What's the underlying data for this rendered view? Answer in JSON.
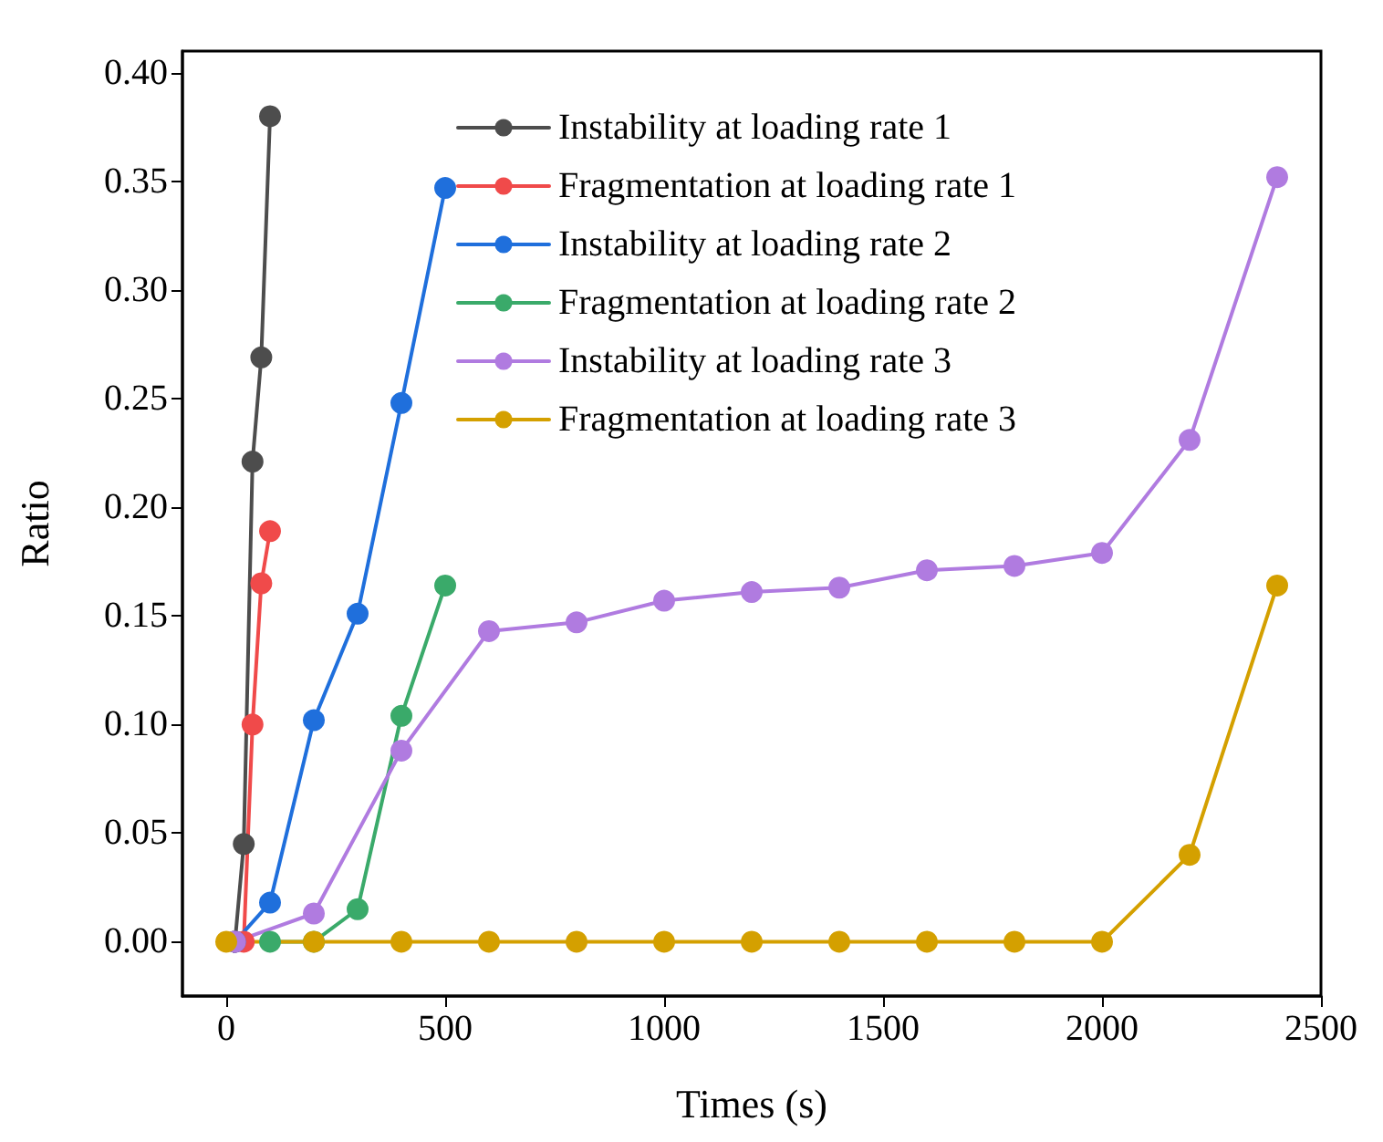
{
  "chart_data": {
    "type": "line",
    "xlabel": "Times (s)",
    "ylabel": "Ratio",
    "xlim": [
      -100,
      2500
    ],
    "xticks": [
      0,
      500,
      1000,
      1500,
      2000,
      2500
    ],
    "ylim": [
      -0.025,
      0.41
    ],
    "yticks": [
      {
        "value": 0,
        "label": "0.00"
      },
      {
        "value": 0.05,
        "label": "0.05"
      },
      {
        "value": 0.1,
        "label": "0.10"
      },
      {
        "value": 0.15,
        "label": "0.15"
      },
      {
        "value": 0.2,
        "label": "0.20"
      },
      {
        "value": 0.25,
        "label": "0.25"
      },
      {
        "value": 0.3,
        "label": "0.30"
      },
      {
        "value": 0.35,
        "label": "0.35"
      },
      {
        "value": 0.4,
        "label": "0.40"
      }
    ],
    "grid": false,
    "legend": "top right",
    "marker": "circle",
    "line_style": "solid",
    "series": [
      {
        "name": "Instability at loading rate 1",
        "color": "#4d4d4d",
        "x": [
          20,
          40,
          60,
          80,
          100
        ],
        "values": [
          0,
          0.045,
          0.221,
          0.269,
          0.38
        ]
      },
      {
        "name": "Fragmentation at loading rate 1",
        "color": "#f04a4a",
        "x": [
          20,
          40,
          60,
          80,
          100
        ],
        "values": [
          0,
          0,
          0.1,
          0.165,
          0.189
        ]
      },
      {
        "name": "Instability at loading rate 2",
        "color": "#1f6fdc",
        "x": [
          20,
          100,
          200,
          300,
          400,
          500
        ],
        "values": [
          0,
          0.018,
          0.102,
          0.151,
          0.248,
          0.347
        ]
      },
      {
        "name": "Fragmentation at loading rate 2",
        "color": "#3aaa6a",
        "x": [
          100,
          200,
          300,
          400,
          500
        ],
        "values": [
          0,
          0,
          0.015,
          0.104,
          0.164
        ]
      },
      {
        "name": "Instability at loading rate 3",
        "color": "#b07be0",
        "x": [
          20,
          200,
          400,
          600,
          800,
          1000,
          1200,
          1400,
          1600,
          1800,
          2000,
          2200,
          2400
        ],
        "values": [
          0,
          0.013,
          0.088,
          0.143,
          0.147,
          0.157,
          0.161,
          0.163,
          0.171,
          0.173,
          0.179,
          0.231,
          0.352
        ]
      },
      {
        "name": "Fragmentation at loading rate 3",
        "color": "#d4a000",
        "x": [
          0,
          200,
          400,
          600,
          800,
          1000,
          1200,
          1400,
          1600,
          1800,
          2000,
          2200,
          2400
        ],
        "values": [
          0,
          0,
          0,
          0,
          0,
          0,
          0,
          0,
          0,
          0,
          0,
          0.04,
          0.164
        ]
      }
    ]
  }
}
